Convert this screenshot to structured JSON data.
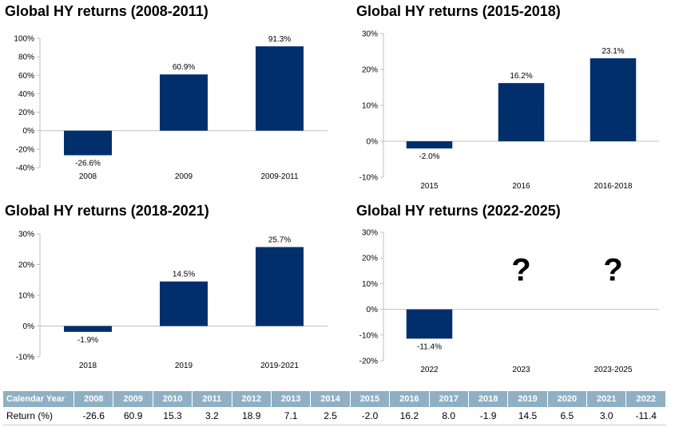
{
  "colors": {
    "bar": "#002f6c",
    "axis": "#bfbfbf",
    "table_header_bg": "#8fb0c4"
  },
  "chart_data": [
    {
      "type": "bar",
      "title": "Global HY returns (2008-2011)",
      "categories": [
        "2008",
        "2009",
        "2009-2011"
      ],
      "values": [
        -26.6,
        60.9,
        91.3
      ],
      "data_labels": [
        "-26.6%",
        "60.9%",
        "91.3%"
      ],
      "ylim": [
        -40,
        100
      ],
      "yticks": [
        -40,
        -20,
        0,
        20,
        40,
        60,
        80,
        100
      ],
      "ytick_labels": [
        "-40%",
        "-20%",
        "0%",
        "20%",
        "40%",
        "60%",
        "80%",
        "100%"
      ]
    },
    {
      "type": "bar",
      "title": "Global HY returns (2015-2018)",
      "categories": [
        "2015",
        "2016",
        "2016-2018"
      ],
      "values": [
        -2.0,
        16.2,
        23.1
      ],
      "data_labels": [
        "-2.0%",
        "16.2%",
        "23.1%"
      ],
      "ylim": [
        -10,
        30
      ],
      "yticks": [
        -10,
        0,
        10,
        20,
        30
      ],
      "ytick_labels": [
        "-10%",
        "0%",
        "10%",
        "20%",
        "30%"
      ]
    },
    {
      "type": "bar",
      "title": "Global HY returns (2018-2021)",
      "categories": [
        "2018",
        "2019",
        "2019-2021"
      ],
      "values": [
        -1.9,
        14.5,
        25.7
      ],
      "data_labels": [
        "-1.9%",
        "14.5%",
        "25.7%"
      ],
      "ylim": [
        -10,
        30
      ],
      "yticks": [
        -10,
        0,
        10,
        20,
        30
      ],
      "ytick_labels": [
        "-10%",
        "0%",
        "10%",
        "20%",
        "30%"
      ]
    },
    {
      "type": "bar",
      "title": "Global HY returns (2022-2025)",
      "categories": [
        "2022",
        "2023",
        "2023-2025"
      ],
      "values": [
        -11.4,
        null,
        null
      ],
      "data_labels": [
        "-11.4%",
        "?",
        "?"
      ],
      "ylim": [
        -20,
        30
      ],
      "yticks": [
        -20,
        -10,
        0,
        10,
        20,
        30
      ],
      "ytick_labels": [
        "-20%",
        "-10%",
        "0%",
        "10%",
        "20%",
        "30%"
      ]
    }
  ],
  "table": {
    "header_label": "Calendar Year",
    "row_label": "Return (%)",
    "years": [
      "2008",
      "2009",
      "2010",
      "2011",
      "2012",
      "2013",
      "2014",
      "2015",
      "2016",
      "2017",
      "2018",
      "2019",
      "2020",
      "2021",
      "2022"
    ],
    "returns": [
      "-26.6",
      "60.9",
      "15.3",
      "3.2",
      "18.9",
      "7.1",
      "2.5",
      "-2.0",
      "16.2",
      "8.0",
      "-1.9",
      "14.5",
      "6.5",
      "3.0",
      "-11.4"
    ]
  }
}
